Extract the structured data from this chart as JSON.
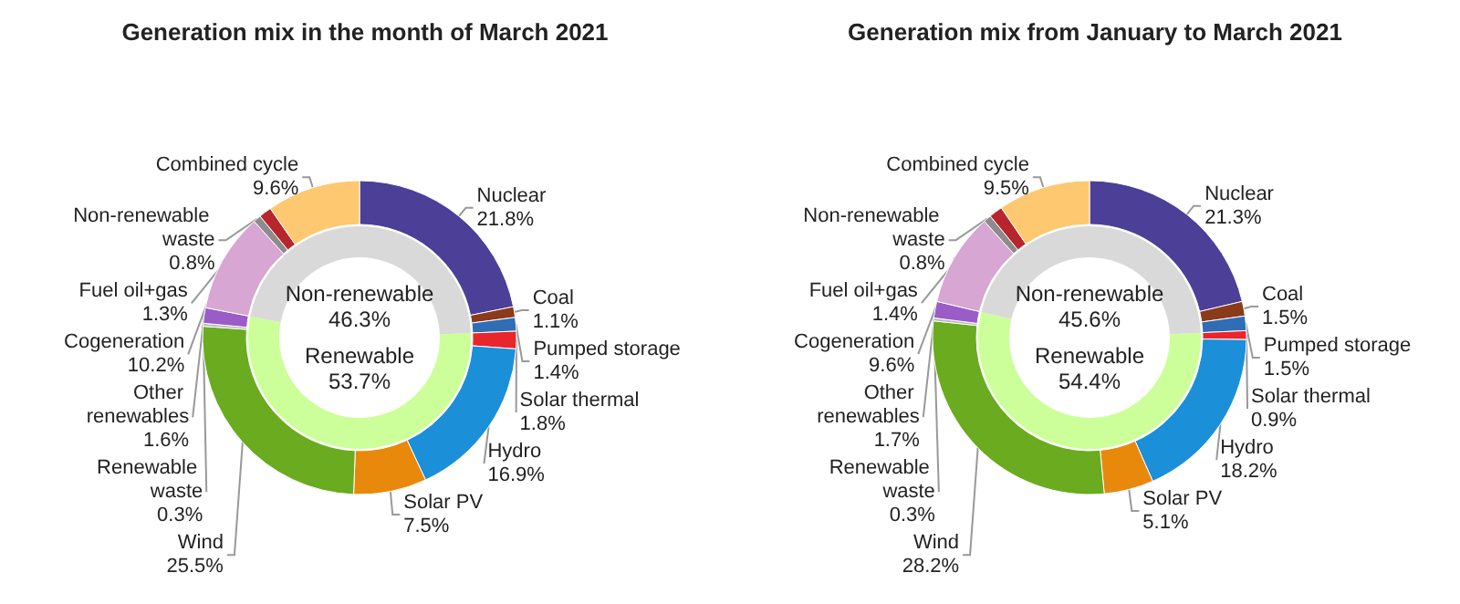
{
  "chart_data": [
    {
      "type": "donut",
      "title": "Generation mix in the month of March 2021",
      "categories": [
        "Nuclear",
        "Coal",
        "Pumped storage",
        "Solar thermal",
        "Hydro",
        "Solar PV",
        "Wind",
        "Renewable waste",
        "Other renewables",
        "Cogeneration",
        "Non-renewable waste",
        "Fuel oil+gas",
        "Combined cycle"
      ],
      "values": [
        21.8,
        1.1,
        1.4,
        1.8,
        16.9,
        7.5,
        25.5,
        0.3,
        1.6,
        10.2,
        0.8,
        1.3,
        9.6
      ],
      "value_labels": [
        "21.8%",
        "1.1%",
        "1.4%",
        "1.8%",
        "16.9%",
        "7.5%",
        "25.5%",
        "0.3%",
        "1.6%",
        "10.2%",
        "0.8%",
        "1.3%",
        "9.6%"
      ],
      "colors": [
        "#4b3f98",
        "#8b3a1a",
        "#2f6db5",
        "#e8262b",
        "#1b8fd8",
        "#e8890c",
        "#6aab1f",
        "#b9b9b9",
        "#9a5cc6",
        "#d7a6d3",
        "#8c8c8c",
        "#b8262d",
        "#fdc870"
      ]
    },
    {
      "type": "donut",
      "categories": [
        "Renewable",
        "Non-renewable"
      ],
      "values": [
        53.7,
        46.3
      ],
      "value_labels": [
        "53.7%",
        "46.3%"
      ],
      "colors": [
        "#ccff99",
        "#d9d9d9"
      ]
    },
    {
      "type": "donut",
      "title": "Generation mix from January to March 2021",
      "categories": [
        "Nuclear",
        "Coal",
        "Pumped storage",
        "Solar thermal",
        "Hydro",
        "Solar PV",
        "Wind",
        "Renewable waste",
        "Other renewables",
        "Cogeneration",
        "Non-renewable waste",
        "Fuel oil+gas",
        "Combined cycle"
      ],
      "values": [
        21.3,
        1.5,
        1.5,
        0.9,
        18.2,
        5.1,
        28.2,
        0.3,
        1.7,
        9.6,
        0.8,
        1.4,
        9.5
      ],
      "value_labels": [
        "21.3%",
        "1.5%",
        "1.5%",
        "0.9%",
        "18.2%",
        "5.1%",
        "28.2%",
        "0.3%",
        "1.7%",
        "9.6%",
        "0.8%",
        "1.4%",
        "9.5%"
      ],
      "colors": [
        "#4b3f98",
        "#8b3a1a",
        "#2f6db5",
        "#e8262b",
        "#1b8fd8",
        "#e8890c",
        "#6aab1f",
        "#b9b9b9",
        "#9a5cc6",
        "#d7a6d3",
        "#8c8c8c",
        "#b8262d",
        "#fdc870"
      ]
    },
    {
      "type": "donut",
      "categories": [
        "Renewable",
        "Non-renewable"
      ],
      "values": [
        54.4,
        45.6
      ],
      "value_labels": [
        "54.4%",
        "45.6%"
      ],
      "colors": [
        "#ccff99",
        "#d9d9d9"
      ]
    }
  ]
}
